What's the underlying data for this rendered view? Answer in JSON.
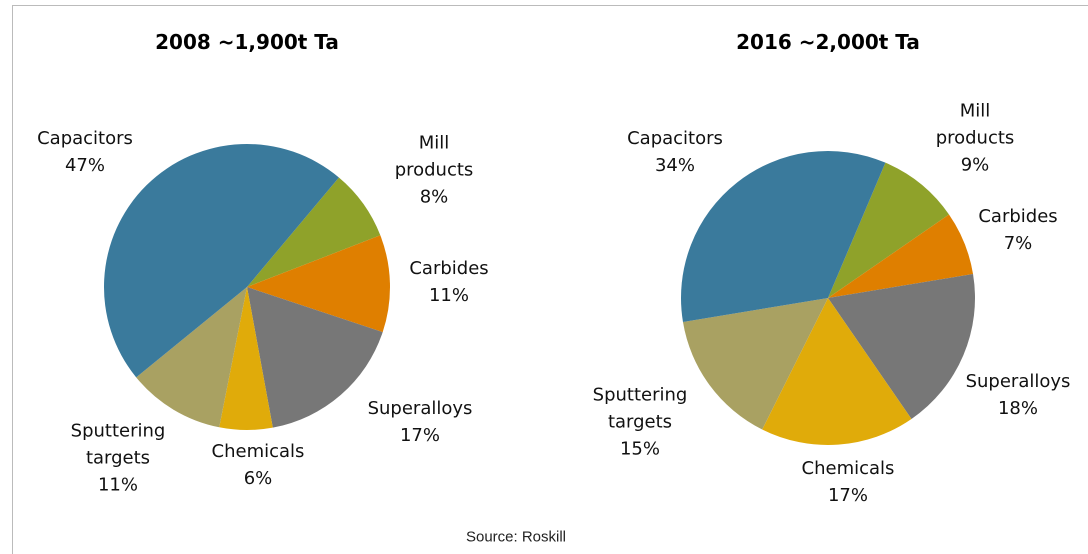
{
  "chart_data": [
    {
      "type": "pie",
      "title": "2008 ~1,900t Ta",
      "categories": [
        "Mill products",
        "Carbides",
        "Superalloys",
        "Chemicals",
        "Sputtering targets",
        "Capacitors"
      ],
      "values": [
        8,
        11,
        17,
        6,
        11,
        47
      ],
      "value_labels": [
        "8%",
        "11%",
        "17%",
        "6%",
        "11%",
        "47%"
      ],
      "colors": [
        "#8fa22a",
        "#df7f00",
        "#777777",
        "#e0ab0a",
        "#a9a162",
        "#3a7a9c"
      ]
    },
    {
      "type": "pie",
      "title": "2016 ~2,000t Ta",
      "categories": [
        "Mill products",
        "Carbides",
        "Superalloys",
        "Chemicals",
        "Sputtering targets",
        "Capacitors"
      ],
      "values": [
        9,
        7,
        18,
        17,
        15,
        34
      ],
      "value_labels": [
        "9%",
        "7%",
        "18%",
        "17%",
        "15%",
        "34%"
      ],
      "colors": [
        "#8fa22a",
        "#df7f00",
        "#777777",
        "#e0ab0a",
        "#a9a162",
        "#3a7a9c"
      ]
    }
  ],
  "source": "Source: Roskill"
}
